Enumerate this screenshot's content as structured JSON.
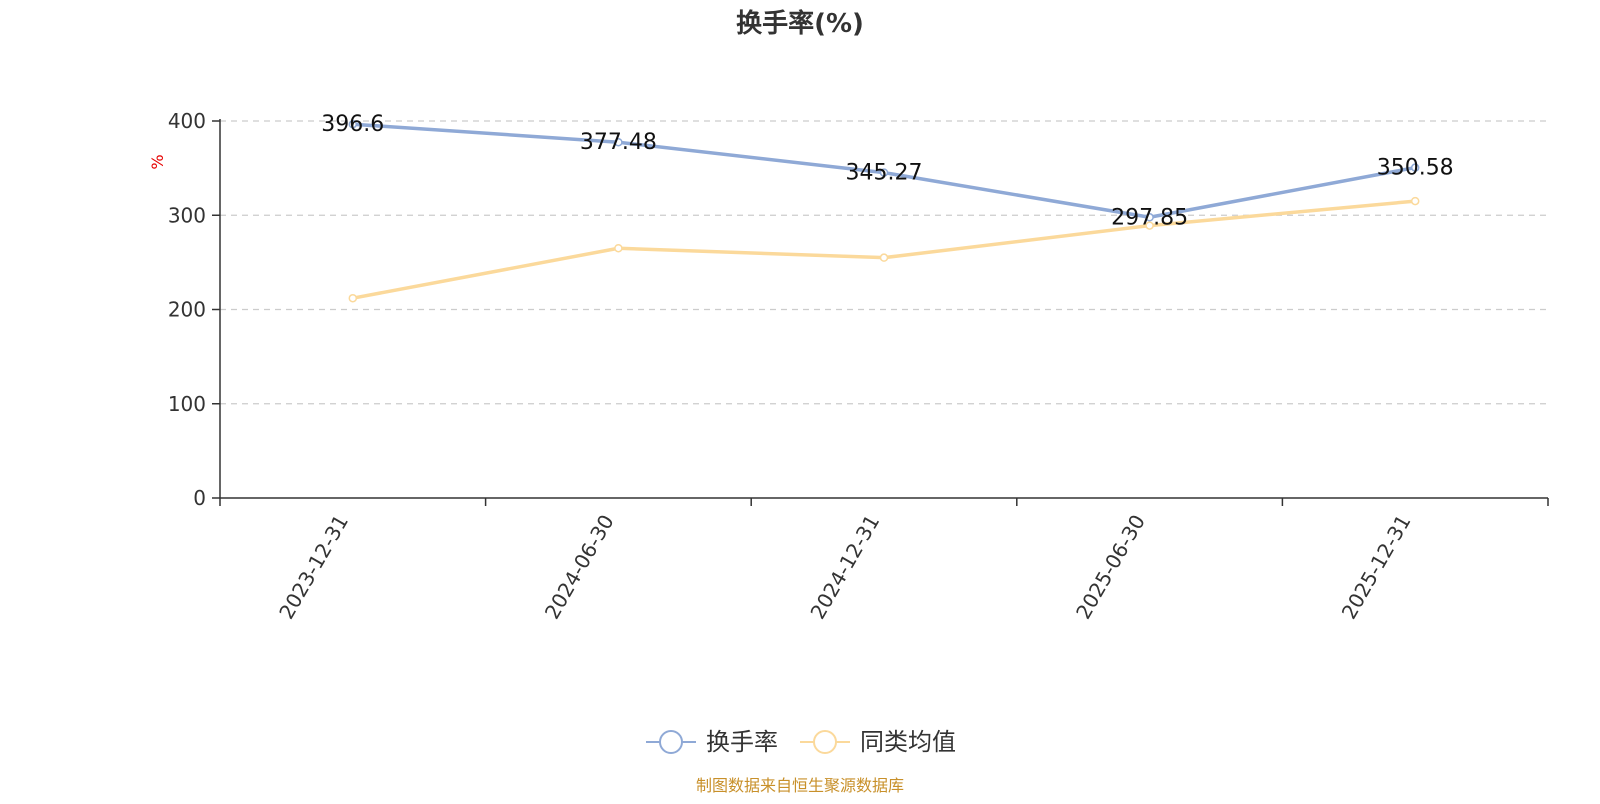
{
  "chart_data": {
    "type": "line",
    "title": "换手率(%)",
    "ylabel": "%",
    "xlabel": "",
    "categories": [
      "2023-12-31",
      "2024-06-30",
      "2024-12-31",
      "2025-06-30",
      "2025-12-31"
    ],
    "ylim": [
      0,
      400
    ],
    "yticks": [
      0,
      100,
      200,
      300,
      400
    ],
    "grid": true,
    "legend_position": "bottom-center",
    "series": [
      {
        "name": "换手率",
        "color": "#8fa9d6",
        "values": [
          396.6,
          377.48,
          345.27,
          297.85,
          350.58
        ],
        "show_labels": true
      },
      {
        "name": "同类均值",
        "color": "#fbd99b",
        "values": [
          212,
          265,
          255,
          289,
          315
        ],
        "show_labels": false
      }
    ]
  },
  "footer": {
    "source": "制图数据来自恒生聚源数据库"
  },
  "colors": {
    "axis": "#333333",
    "grid": "#cccccc",
    "ylabel": "#e60000",
    "footer": "#c8902a",
    "text": "#333333"
  }
}
